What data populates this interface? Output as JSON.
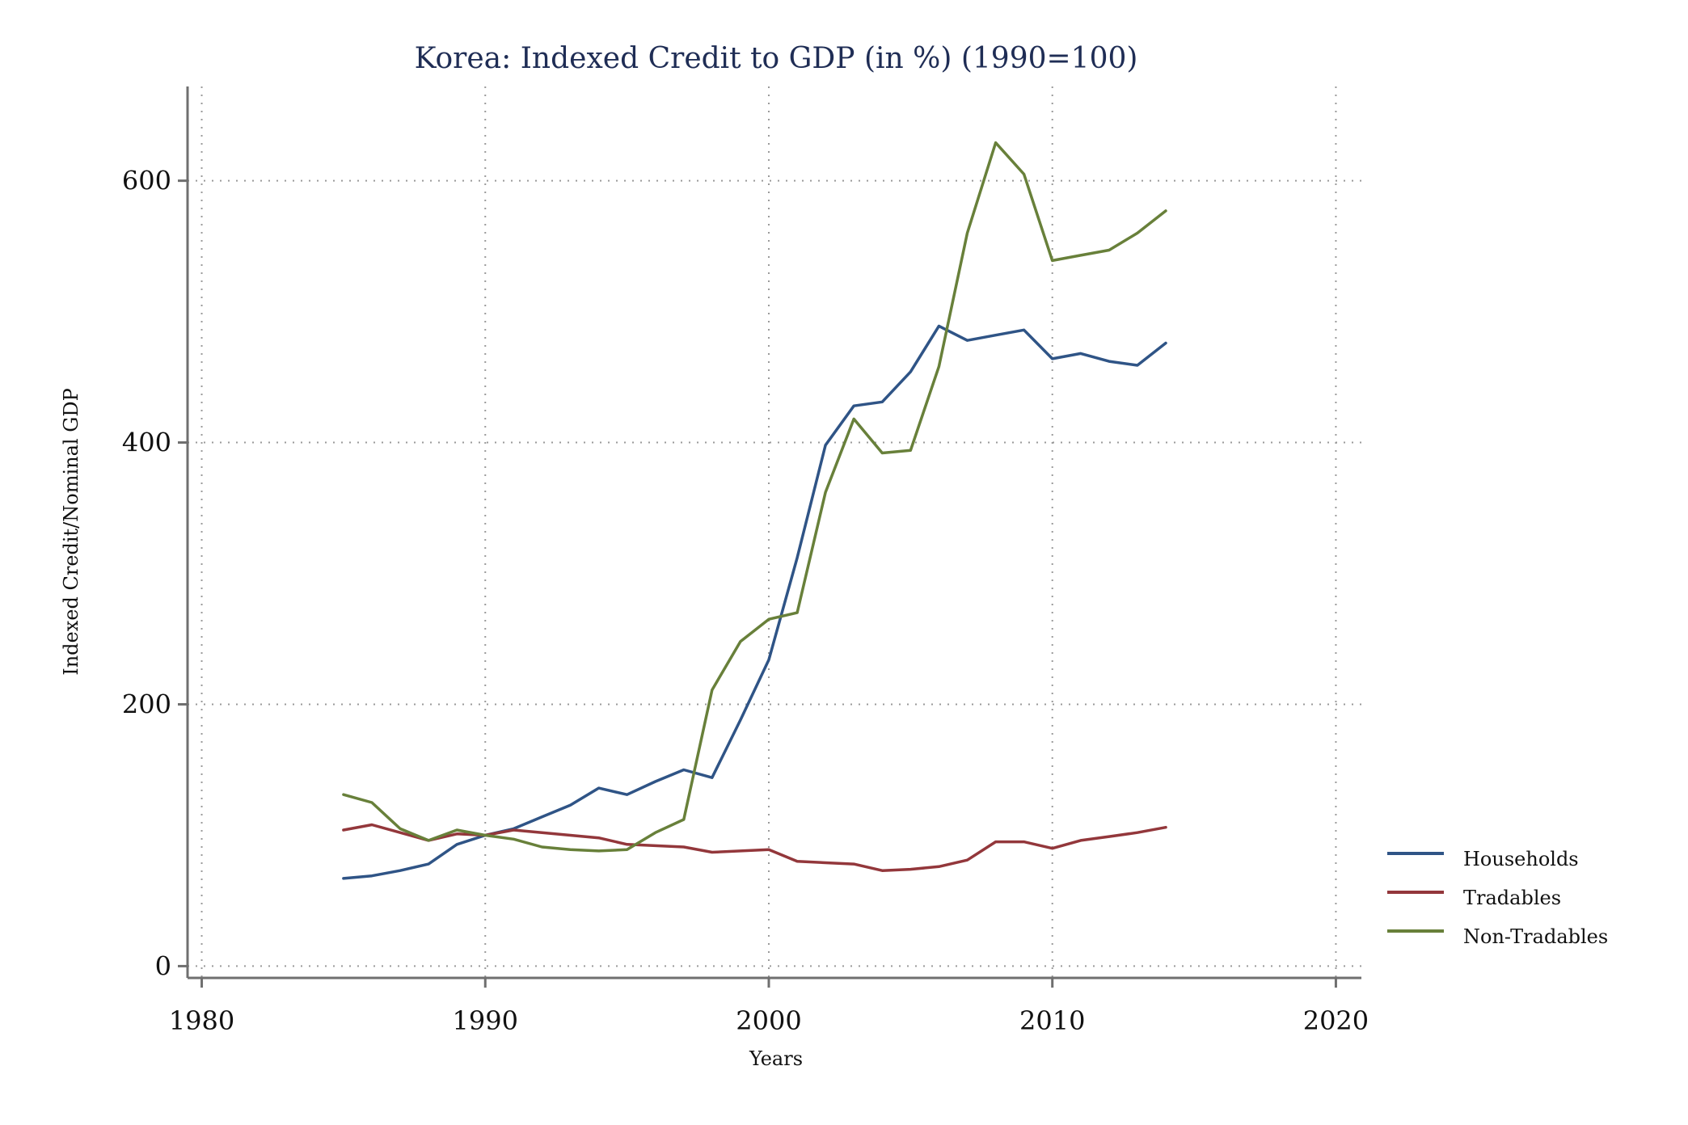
{
  "chart_data": {
    "type": "line",
    "title": "Korea: Indexed Credit to GDP (in %) (1990=100)",
    "xlabel": "Years",
    "ylabel": "Indexed Credit/Nominal GDP",
    "xlim": [
      1979.5,
      2020.9
    ],
    "ylim": [
      -9,
      672
    ],
    "xticks": [
      1980,
      1990,
      2000,
      2010,
      2020
    ],
    "yticks": [
      0,
      200,
      400,
      600
    ],
    "grid": true,
    "legend_position": "right",
    "x": [
      1985,
      1986,
      1987,
      1988,
      1989,
      1990,
      1991,
      1992,
      1993,
      1994,
      1995,
      1996,
      1997,
      1998,
      1999,
      2000,
      2001,
      2002,
      2003,
      2004,
      2005,
      2006,
      2007,
      2008,
      2009,
      2010,
      2011,
      2012,
      2013,
      2014
    ],
    "series": [
      {
        "name": "Households",
        "color": "#2f5486",
        "values": [
          67,
          69,
          73,
          78,
          93,
          100,
          105,
          114,
          123,
          136,
          131,
          141,
          150,
          144,
          188,
          234,
          312,
          398,
          428,
          431,
          454,
          489,
          478,
          482,
          486,
          464,
          468,
          462,
          459,
          476
        ]
      },
      {
        "name": "Tradables",
        "color": "#93373b",
        "values": [
          104,
          108,
          102,
          96,
          101,
          100,
          104,
          102,
          100,
          98,
          93,
          92,
          91,
          87,
          88,
          89,
          80,
          79,
          78,
          73,
          74,
          76,
          81,
          95,
          95,
          90,
          96,
          99,
          102,
          106
        ]
      },
      {
        "name": "Non-Tradables",
        "color": "#68803a",
        "values": [
          131,
          125,
          105,
          96,
          104,
          100,
          97,
          91,
          89,
          88,
          89,
          102,
          112,
          211,
          248,
          265,
          270,
          362,
          418,
          392,
          394,
          458,
          560,
          629,
          605,
          539,
          543,
          547,
          560,
          577
        ]
      }
    ]
  }
}
